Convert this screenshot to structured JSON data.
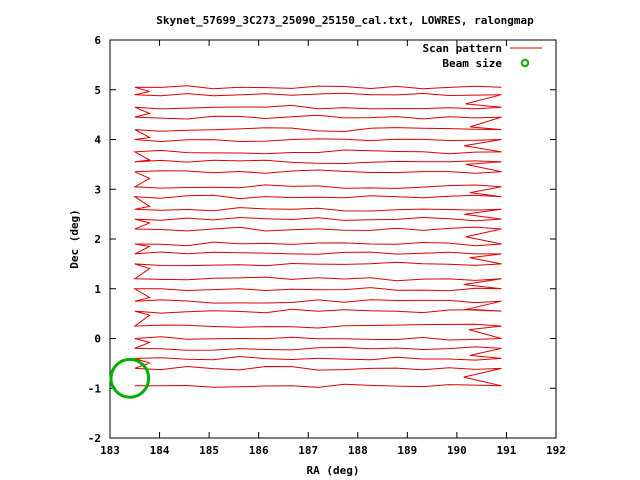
{
  "chart_data": {
    "type": "line",
    "title": "Skynet_57699_3C273_25090_25150_cal.txt, LOWRES, ralongmap",
    "xlabel": "RA (deg)",
    "ylabel": "Dec (deg)",
    "xlim": [
      183,
      192
    ],
    "ylim": [
      -2,
      6
    ],
    "xticks": [
      "183",
      "184",
      "185",
      "186",
      "187",
      "188",
      "189",
      "190",
      "191",
      "192"
    ],
    "yticks": [
      "-2",
      "-1",
      "0",
      "1",
      "2",
      "3",
      "4",
      "5",
      "6"
    ],
    "legend_position": "top-right",
    "series": [
      {
        "name": "Scan pattern",
        "color": "#e00000",
        "style": "line",
        "scan_rows_dec": [
          -0.95,
          -0.6,
          -0.4,
          -0.2,
          0.0,
          0.25,
          0.55,
          0.75,
          1.0,
          1.2,
          1.5,
          1.7,
          1.9,
          2.2,
          2.4,
          2.6,
          2.85,
          3.05,
          3.35,
          3.55,
          3.75,
          4.0,
          4.2,
          4.45,
          4.65,
          4.9,
          5.05
        ],
        "ra_start": 183.5,
        "ra_end": 190.9,
        "turnaround_ra": 190.2
      },
      {
        "name": "Beam size",
        "color": "#00b000",
        "style": "circle",
        "center": [
          183.4,
          -0.8
        ],
        "radius_deg": 0.38
      }
    ]
  }
}
